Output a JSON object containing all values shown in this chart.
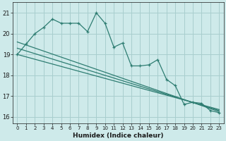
{
  "xlabel": "Humidex (Indice chaleur)",
  "bg_color": "#ceeaea",
  "grid_color": "#a8cece",
  "line_color": "#2e7d72",
  "xlim": [
    -0.5,
    23.5
  ],
  "ylim": [
    15.7,
    21.5
  ],
  "yticks": [
    16,
    17,
    18,
    19,
    20,
    21
  ],
  "xticks": [
    0,
    1,
    2,
    3,
    4,
    5,
    6,
    7,
    8,
    9,
    10,
    11,
    12,
    13,
    14,
    15,
    16,
    17,
    18,
    19,
    20,
    21,
    22,
    23
  ],
  "line1": [
    19.0,
    19.5,
    20.0,
    20.3,
    20.7,
    20.5,
    20.5,
    20.5,
    20.1,
    21.0,
    20.5,
    19.35,
    19.55,
    18.45,
    18.45,
    18.5,
    18.75,
    17.8,
    17.5,
    16.6,
    16.7,
    16.65,
    16.3,
    16.2
  ],
  "trend1_x": [
    0,
    23
  ],
  "trend1_y": [
    19.6,
    16.25
  ],
  "trend2_x": [
    0,
    23
  ],
  "trend2_y": [
    19.3,
    16.3
  ],
  "trend3_x": [
    0,
    23
  ],
  "trend3_y": [
    19.0,
    16.35
  ]
}
